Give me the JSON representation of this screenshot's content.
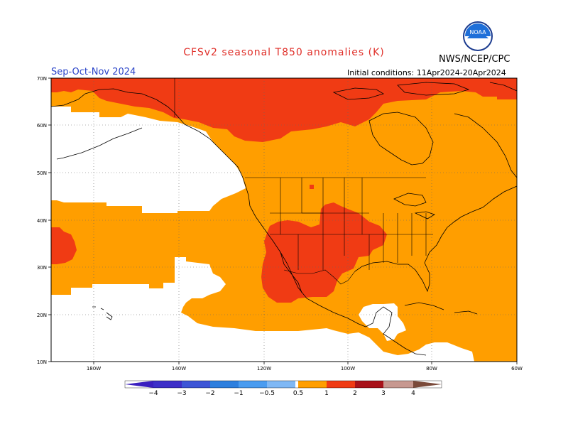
{
  "header": {
    "title": "CFSv2 seasonal T850 anomalies (K)",
    "period": "Sep-Oct-Nov 2024",
    "initial_conditions": "Initial conditions: 11Apr2024-20Apr2024",
    "agency": "NWS/NCEP/CPC",
    "logo_text": "NOAA"
  },
  "map": {
    "region": "North America and Eastern Pacific",
    "lon_labels": [
      "180W",
      "140W",
      "120W",
      "100W",
      "80W",
      "60W"
    ],
    "lat_labels": [
      "70N",
      "60N",
      "50N",
      "40N",
      "30N",
      "20N",
      "10N"
    ],
    "colors": {
      "white": "#ffffff",
      "orange": "#ff9e00",
      "red": "#f03b14",
      "coast": "#000000"
    }
  },
  "colorbar": {
    "labels": [
      "−4",
      "−3",
      "−2",
      "−1",
      "−0.5",
      "0.5",
      "1",
      "2",
      "3",
      "4"
    ],
    "colors": [
      "#3a1fbf",
      "#3d55d6",
      "#2d7fde",
      "#4a9cf0",
      "#7fb8f5",
      "#ffffff",
      "#ff9e00",
      "#f03b14",
      "#a8121a",
      "#c79890",
      "#7a4a3a"
    ]
  }
}
